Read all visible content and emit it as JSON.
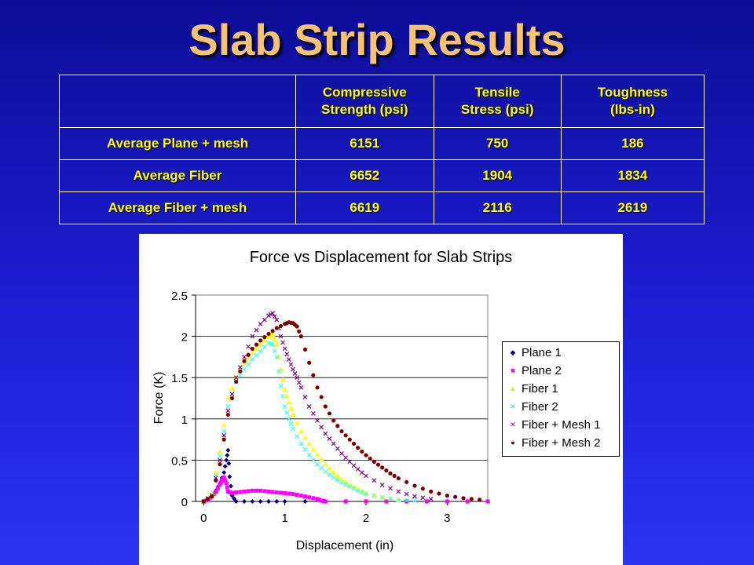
{
  "slide": {
    "title": "Slab Strip Results"
  },
  "table": {
    "headers": [
      "",
      "Compressive Strength (psi)",
      "Tensile Stress (psi)",
      "Toughness (lbs-in)"
    ],
    "rows": [
      [
        "Average Plane + mesh",
        "6151",
        "750",
        "186"
      ],
      [
        "Average Fiber",
        "6652",
        "1904",
        "1834"
      ],
      [
        "Average Fiber + mesh",
        "6619",
        "2116",
        "2619"
      ]
    ]
  },
  "chart_data": {
    "type": "scatter",
    "title": "Force vs Displacement for Slab Strips",
    "xlabel": "Displacement (in)",
    "ylabel": "Force (K)",
    "xlim": [
      -0.1,
      3.5
    ],
    "ylim": [
      0,
      2.5
    ],
    "xticks": [
      "0",
      "1",
      "2",
      "3"
    ],
    "yticks": [
      "0",
      "0.5",
      "1",
      "1.5",
      "2",
      "2.5"
    ],
    "grid": true,
    "legend_position": "right",
    "series": [
      {
        "name": "Plane 1",
        "color": "#000080",
        "marker": "diamond",
        "x": [
          0.0,
          0.05,
          0.1,
          0.15,
          0.2,
          0.25,
          0.28,
          0.3,
          0.32,
          0.35,
          0.4,
          0.6,
          0.8,
          1.0,
          1.5,
          2.0,
          2.5,
          3.0,
          3.5
        ],
        "y": [
          0.0,
          0.02,
          0.06,
          0.13,
          0.22,
          0.35,
          0.5,
          0.62,
          0.3,
          0.07,
          0.0,
          0.0,
          0.0,
          0.0,
          0.0,
          0.0,
          0.0,
          0.0,
          0.0
        ]
      },
      {
        "name": "Plane 2",
        "color": "#ff00ff",
        "marker": "square",
        "x": [
          0.0,
          0.05,
          0.1,
          0.15,
          0.2,
          0.22,
          0.25,
          0.28,
          0.3,
          0.35,
          0.4,
          0.5,
          0.6,
          0.7,
          0.8,
          0.9,
          1.0,
          1.1,
          1.2,
          1.3,
          1.4,
          1.45,
          1.5,
          2.0,
          2.5,
          3.0,
          3.5
        ],
        "y": [
          0.0,
          0.02,
          0.06,
          0.12,
          0.2,
          0.25,
          0.29,
          0.22,
          0.12,
          0.1,
          0.11,
          0.12,
          0.13,
          0.13,
          0.12,
          0.11,
          0.1,
          0.09,
          0.07,
          0.05,
          0.03,
          0.01,
          0.0,
          0.0,
          0.0,
          0.0,
          0.0
        ]
      },
      {
        "name": "Fiber 1",
        "color": "#ffff00",
        "marker": "triangle",
        "x": [
          0.0,
          0.1,
          0.2,
          0.3,
          0.4,
          0.5,
          0.6,
          0.7,
          0.8,
          0.85,
          0.9,
          0.95,
          1.0,
          1.05,
          1.1,
          1.2,
          1.3,
          1.4,
          1.5,
          1.6,
          1.7,
          1.8,
          1.9,
          2.0,
          2.2,
          2.4
        ],
        "y": [
          0.0,
          0.1,
          0.6,
          1.25,
          1.5,
          1.68,
          1.8,
          1.9,
          2.0,
          2.02,
          1.9,
          1.6,
          1.35,
          1.2,
          1.05,
          0.85,
          0.7,
          0.57,
          0.45,
          0.35,
          0.27,
          0.2,
          0.15,
          0.1,
          0.05,
          0.02
        ]
      },
      {
        "name": "Fiber 2",
        "color": "#33ffff",
        "marker": "x",
        "x": [
          0.0,
          0.1,
          0.2,
          0.3,
          0.4,
          0.5,
          0.6,
          0.7,
          0.8,
          0.85,
          0.9,
          0.95,
          1.0,
          1.05,
          1.1,
          1.2,
          1.3,
          1.4,
          1.5,
          1.6,
          1.7,
          1.8,
          1.9,
          2.0,
          2.2,
          2.4,
          2.6
        ],
        "y": [
          0.0,
          0.08,
          0.55,
          1.15,
          1.45,
          1.6,
          1.72,
          1.82,
          1.92,
          1.9,
          1.75,
          1.4,
          1.15,
          1.0,
          0.88,
          0.7,
          0.56,
          0.45,
          0.36,
          0.29,
          0.23,
          0.18,
          0.13,
          0.09,
          0.05,
          0.02,
          0.01
        ]
      },
      {
        "name": "Fiber + Mesh 1",
        "color": "#800080",
        "marker": "x",
        "x": [
          0.0,
          0.1,
          0.2,
          0.3,
          0.4,
          0.5,
          0.6,
          0.7,
          0.8,
          0.85,
          0.9,
          0.95,
          1.0,
          1.05,
          1.1,
          1.15,
          1.2,
          1.3,
          1.4,
          1.5,
          1.6,
          1.7,
          1.8,
          1.9,
          2.0,
          2.2,
          2.4,
          2.6,
          2.8
        ],
        "y": [
          0.0,
          0.07,
          0.5,
          1.1,
          1.5,
          1.75,
          2.0,
          2.15,
          2.25,
          2.28,
          2.2,
          2.0,
          1.85,
          1.72,
          1.6,
          1.5,
          1.38,
          1.15,
          0.98,
          0.82,
          0.7,
          0.58,
          0.48,
          0.39,
          0.31,
          0.2,
          0.12,
          0.06,
          0.03
        ]
      },
      {
        "name": "Fiber + Mesh 2",
        "color": "#800000",
        "marker": "circle",
        "x": [
          0.0,
          0.1,
          0.2,
          0.3,
          0.4,
          0.5,
          0.6,
          0.7,
          0.8,
          0.9,
          1.0,
          1.05,
          1.1,
          1.15,
          1.2,
          1.3,
          1.4,
          1.5,
          1.6,
          1.7,
          1.8,
          1.9,
          2.0,
          2.1,
          2.2,
          2.3,
          2.4,
          2.6,
          2.8,
          3.0,
          3.2,
          3.4
        ],
        "y": [
          0.0,
          0.06,
          0.45,
          1.05,
          1.45,
          1.7,
          1.85,
          1.95,
          2.03,
          2.1,
          2.15,
          2.17,
          2.16,
          2.12,
          2.0,
          1.68,
          1.38,
          1.15,
          0.98,
          0.85,
          0.75,
          0.65,
          0.56,
          0.48,
          0.41,
          0.34,
          0.28,
          0.19,
          0.12,
          0.07,
          0.04,
          0.02
        ]
      }
    ]
  }
}
